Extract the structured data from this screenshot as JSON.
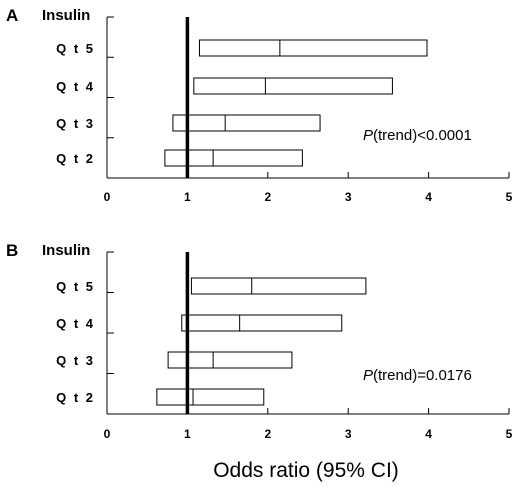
{
  "chart_data": [
    {
      "type": "bar",
      "panel": "A",
      "title": "Insulin",
      "categories": [
        "Q t 5",
        "Q t 4",
        "Q t 3",
        "Q t 2"
      ],
      "series": [
        {
          "lower": [
            1.15,
            1.08,
            0.82,
            0.72
          ],
          "estimate": [
            2.15,
            1.97,
            1.47,
            1.32
          ],
          "upper": [
            3.98,
            3.55,
            2.65,
            2.43
          ]
        }
      ],
      "reference_line": 1,
      "xlim": [
        0,
        5
      ],
      "xticks": [
        "0",
        "1",
        "2",
        "3",
        "4",
        "5"
      ],
      "annotation": {
        "italic": "P",
        "text": "(trend)<0.0001"
      }
    },
    {
      "type": "bar",
      "panel": "B",
      "title": "Insulin",
      "categories": [
        "Q t 5",
        "Q t 4",
        "Q t 3",
        "Q t 2"
      ],
      "series": [
        {
          "lower": [
            1.05,
            0.93,
            0.76,
            0.62
          ],
          "estimate": [
            1.8,
            1.65,
            1.32,
            1.07
          ],
          "upper": [
            3.22,
            2.92,
            2.3,
            1.95
          ]
        }
      ],
      "reference_line": 1,
      "xlim": [
        0,
        5
      ],
      "xticks": [
        "0",
        "1",
        "2",
        "3",
        "4",
        "5"
      ],
      "annotation": {
        "italic": "P",
        "text": "(trend)=0.0176"
      }
    }
  ],
  "xlabel": "Odds ratio (95% CI)"
}
